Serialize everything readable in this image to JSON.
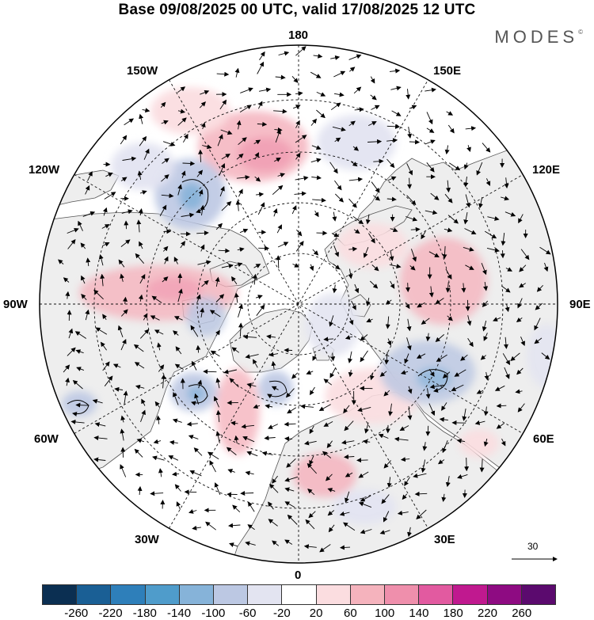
{
  "title": "Base 09/08/2025 00 UTC, valid 17/08/2025 12 UTC",
  "brand": {
    "name": "MODES",
    "mark": "©"
  },
  "longitude_labels": {
    "lon_180": "180",
    "lon_150w": "150W",
    "lon_150e": "150E",
    "lon_120w": "120W",
    "lon_120e": "120E",
    "lon_90w": "90W",
    "lon_90e": "90E",
    "lon_60w": "60W",
    "lon_60e": "60E",
    "lon_30w": "30W",
    "lon_30e": "30E",
    "lon_0": "0"
  },
  "reference_vector": {
    "label": "30"
  },
  "colorbar": {
    "colors": [
      "#0b2f52",
      "#1a5f95",
      "#2e7fba",
      "#4f9ccb",
      "#86b3d9",
      "#bcc8e3",
      "#e3e4f1",
      "#ffffff",
      "#fbdde0",
      "#f5b3bd",
      "#ef8fac",
      "#e25aa0",
      "#c0198f",
      "#8e0b82",
      "#5b0a6e"
    ],
    "ticks": [
      "-260",
      "-220",
      "-180",
      "-140",
      "-100",
      "-60",
      "-20",
      "20",
      "60",
      "100",
      "140",
      "180",
      "220",
      "260"
    ]
  },
  "colors": {
    "land": "#eeeeee",
    "ocean": "#ffffff",
    "coast": "#555555",
    "grid": "#111111"
  }
}
